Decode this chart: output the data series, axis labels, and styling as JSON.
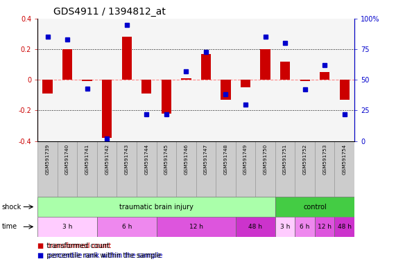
{
  "title": "GDS4911 / 1394812_at",
  "samples": [
    "GSM591739",
    "GSM591740",
    "GSM591741",
    "GSM591742",
    "GSM591743",
    "GSM591744",
    "GSM591745",
    "GSM591746",
    "GSM591747",
    "GSM591748",
    "GSM591749",
    "GSM591750",
    "GSM591751",
    "GSM591752",
    "GSM591753",
    "GSM591754"
  ],
  "red_values": [
    -0.09,
    0.2,
    -0.01,
    -0.38,
    0.28,
    -0.09,
    -0.22,
    0.01,
    0.17,
    -0.13,
    -0.05,
    0.2,
    0.12,
    -0.01,
    0.05,
    -0.13
  ],
  "blue_pct": [
    85,
    83,
    43,
    2,
    95,
    22,
    22,
    57,
    73,
    38,
    30,
    85,
    80,
    42,
    62,
    22
  ],
  "ylim_left": [
    -0.4,
    0.4
  ],
  "ylim_right": [
    0,
    100
  ],
  "shock_groups": [
    {
      "label": "traumatic brain injury",
      "start": 0,
      "end": 12,
      "color": "#aaffaa"
    },
    {
      "label": "control",
      "start": 12,
      "end": 16,
      "color": "#44cc44"
    }
  ],
  "time_groups": [
    {
      "label": "3 h",
      "start": 0,
      "end": 3,
      "color": "#ffccff"
    },
    {
      "label": "6 h",
      "start": 3,
      "end": 6,
      "color": "#ee88ee"
    },
    {
      "label": "12 h",
      "start": 6,
      "end": 10,
      "color": "#dd55dd"
    },
    {
      "label": "48 h",
      "start": 10,
      "end": 12,
      "color": "#cc33cc"
    },
    {
      "label": "3 h",
      "start": 12,
      "end": 13,
      "color": "#ffccff"
    },
    {
      "label": "6 h",
      "start": 13,
      "end": 14,
      "color": "#ee88ee"
    },
    {
      "label": "12 h",
      "start": 14,
      "end": 15,
      "color": "#dd55dd"
    },
    {
      "label": "48 h",
      "start": 15,
      "end": 16,
      "color": "#cc33cc"
    }
  ],
  "red_color": "#cc0000",
  "blue_color": "#0000cc",
  "zero_line_color": "#ff8888",
  "grid_color": "#000000",
  "label_bg": "#cccccc",
  "label_border": "#999999"
}
